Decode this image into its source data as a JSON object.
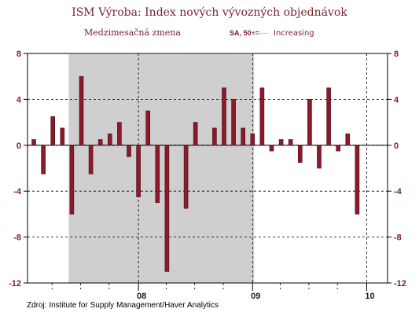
{
  "chart_data": {
    "type": "bar",
    "title": "ISM Výroba: Index nových vývozných objednávok",
    "subtitle": "Medzimesačná zmena",
    "note": "SA, 50+=",
    "legend": [
      "Increasing"
    ],
    "source": "Zdroj: Institute for Supply Management/Haver Analytics",
    "ylim": [
      -12,
      8
    ],
    "yticks": [
      "8",
      "4",
      "0",
      "-4",
      "-8",
      "-12"
    ],
    "ytick_values": [
      8,
      4,
      0,
      -4,
      -8,
      -12
    ],
    "xticks": [
      "08",
      "09",
      "10"
    ],
    "grid": true,
    "shaded_region": {
      "start_index": 4,
      "end_index": 23
    },
    "categories": [
      "2007-02",
      "2007-03",
      "2007-04",
      "2007-05",
      "2007-06",
      "2007-07",
      "2007-08",
      "2007-09",
      "2007-10",
      "2007-11",
      "2007-12",
      "2008-01",
      "2008-02",
      "2008-03",
      "2008-04",
      "2008-05",
      "2008-06",
      "2008-07",
      "2008-08",
      "2008-09",
      "2008-10",
      "2008-11",
      "2008-12",
      "2009-01",
      "2009-02",
      "2009-03",
      "2009-04",
      "2009-05",
      "2009-06",
      "2009-07",
      "2009-08",
      "2009-09",
      "2009-10",
      "2009-11",
      "2009-12",
      "2010-01"
    ],
    "values": [
      0.5,
      -2.5,
      2.5,
      1.5,
      -6.0,
      6.0,
      -2.5,
      0.5,
      1.0,
      2.0,
      -1.0,
      -4.5,
      3.0,
      -5.0,
      -11.0,
      0.0,
      -5.5,
      2.0,
      0.0,
      1.5,
      5.0,
      4.0,
      1.5,
      1.0,
      5.0,
      -0.5,
      0.5,
      0.5,
      -1.5,
      4.0,
      -2.0,
      5.0,
      -0.5,
      1.0,
      -6.0,
      0.0
    ],
    "bar_color": "#8b1a2b",
    "shade_color": "#cfcfcf"
  }
}
